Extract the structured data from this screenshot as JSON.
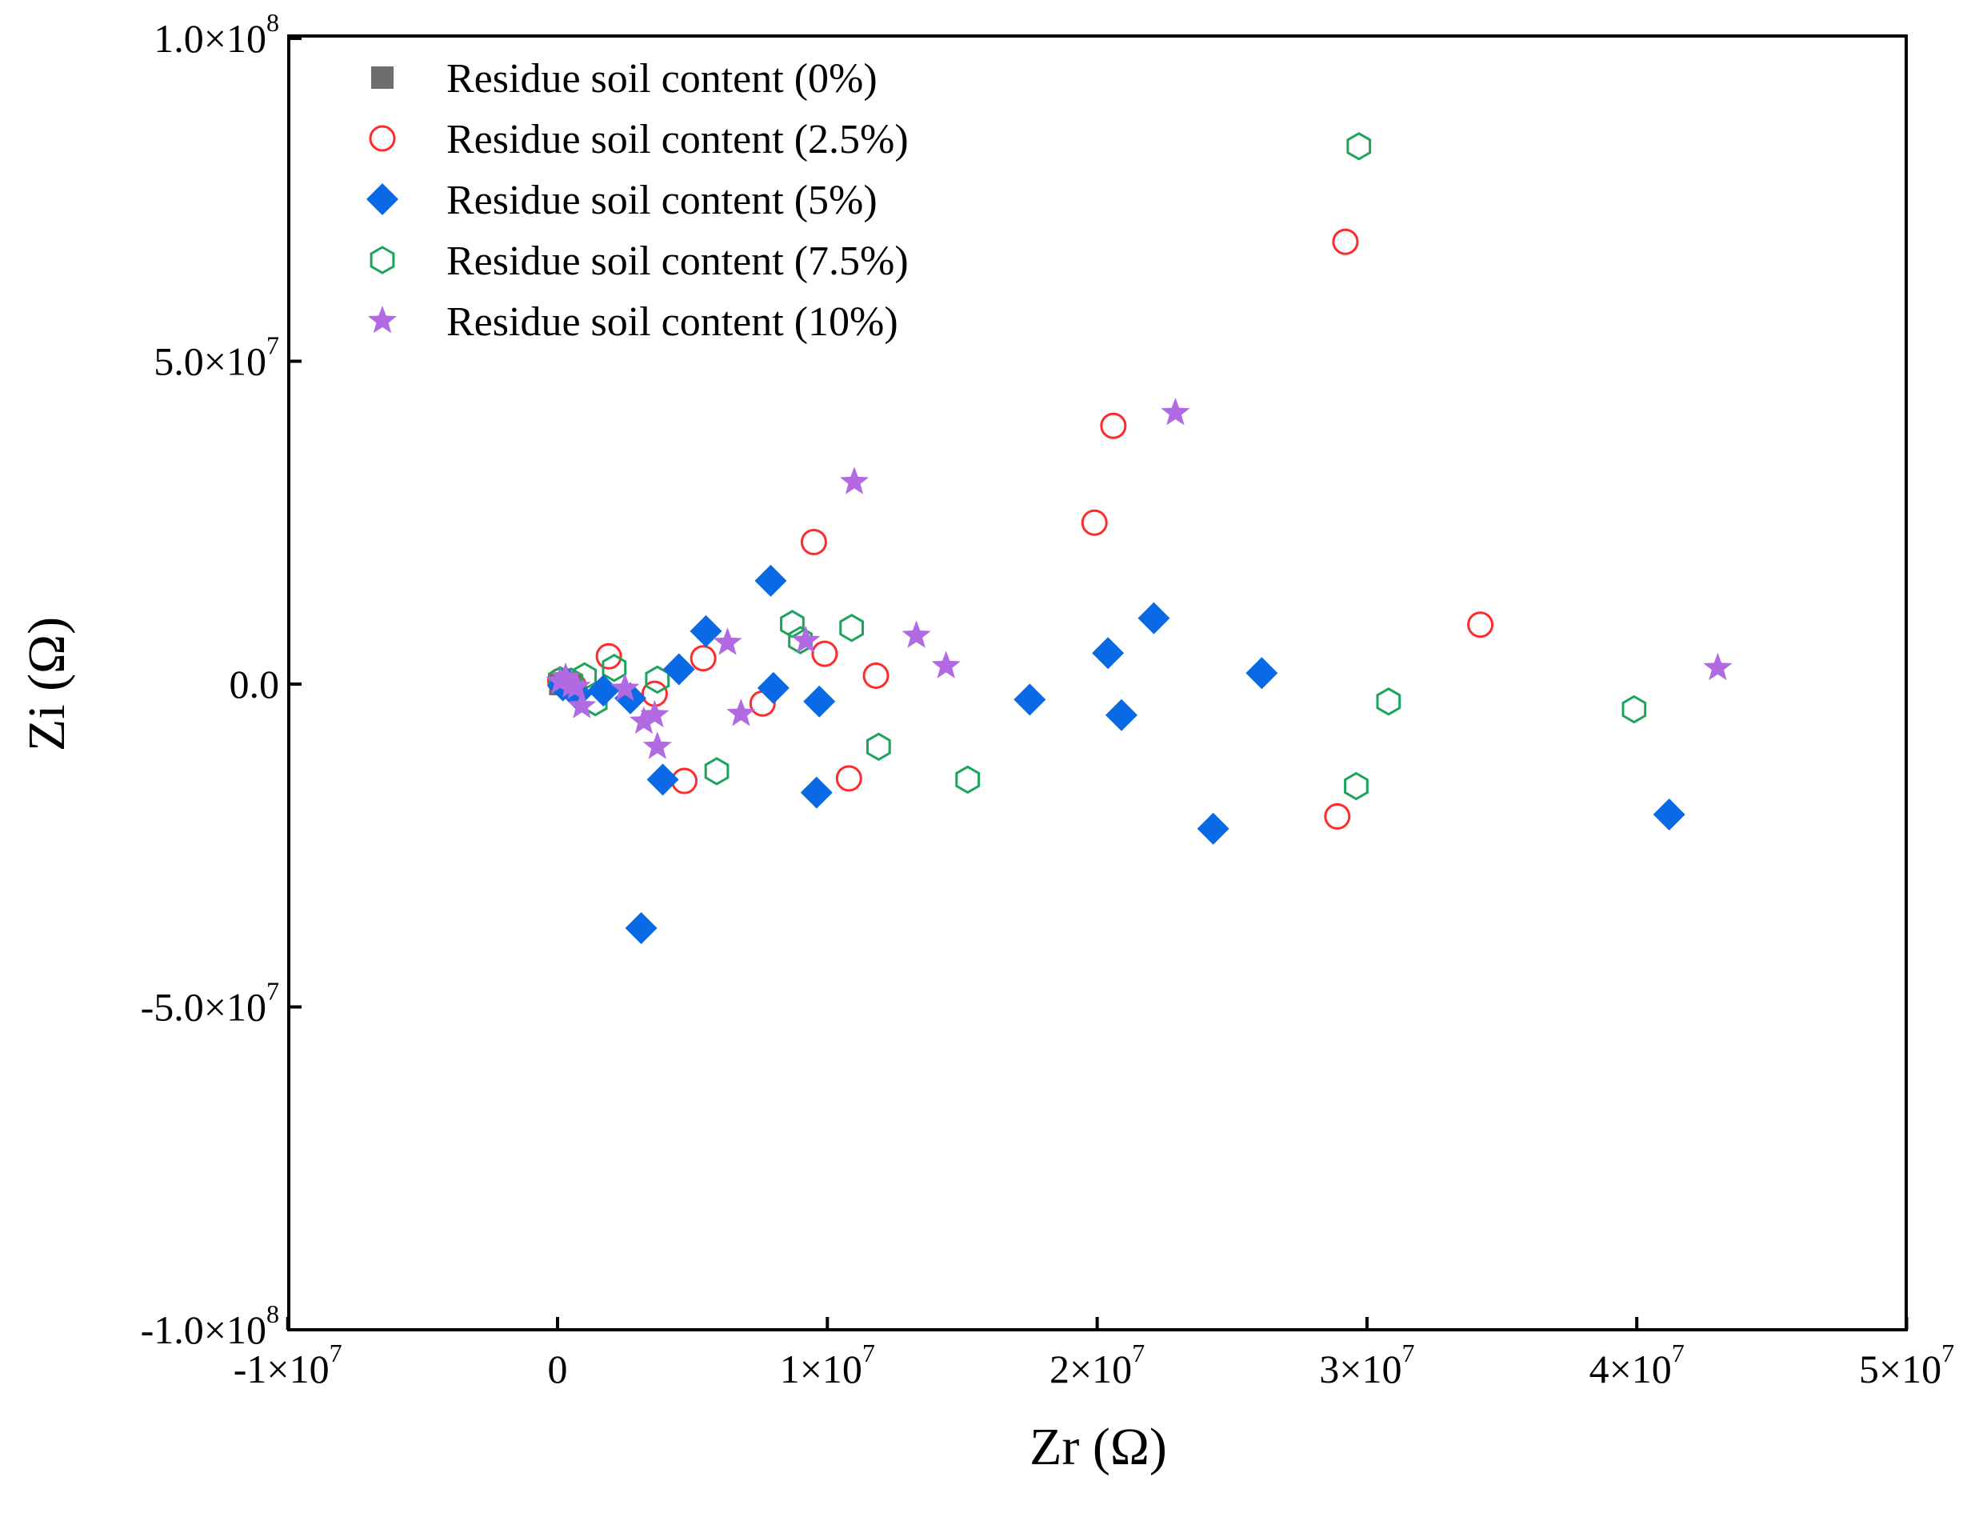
{
  "chart_data": {
    "type": "scatter",
    "title": "",
    "xlabel": "Zr (Ω)",
    "ylabel": "Zi (Ω)",
    "xlim": [
      -10000000,
      50000000
    ],
    "ylim": [
      -100000000,
      100000000
    ],
    "grid": false,
    "legend_position": "top-left",
    "x_ticks": [
      {
        "value": -10000000,
        "mantissa": "-1×10",
        "exp": "7"
      },
      {
        "value": 0,
        "mantissa": "0",
        "exp": ""
      },
      {
        "value": 10000000,
        "mantissa": "1×10",
        "exp": "7"
      },
      {
        "value": 20000000,
        "mantissa": "2×10",
        "exp": "7"
      },
      {
        "value": 30000000,
        "mantissa": "3×10",
        "exp": "7"
      },
      {
        "value": 40000000,
        "mantissa": "4×10",
        "exp": "7"
      },
      {
        "value": 50000000,
        "mantissa": "5×10",
        "exp": "7"
      }
    ],
    "y_ticks": [
      {
        "value": 100000000,
        "mantissa": "1.0×10",
        "exp": "8"
      },
      {
        "value": 50000000,
        "mantissa": "5.0×10",
        "exp": "7"
      },
      {
        "value": 0,
        "mantissa": "0.0",
        "exp": ""
      },
      {
        "value": -50000000,
        "mantissa": "-5.0×10",
        "exp": "7"
      },
      {
        "value": -100000000,
        "mantissa": "-1.0×10",
        "exp": "8"
      }
    ],
    "series": [
      {
        "name": "Residue soil content (0%)",
        "marker": "square",
        "color": "#6e6e6e",
        "filled": true,
        "x": [
          100000,
          300000,
          500000
        ],
        "y": [
          0,
          100000,
          -100000
        ]
      },
      {
        "name": "Residue soil content (2.5%)",
        "marker": "circle",
        "color": "#ff2a2a",
        "filled": false,
        "x": [
          100000,
          300000,
          600000,
          1900000,
          3600000,
          4700000,
          5400000,
          7600000,
          9500000,
          9900000,
          10800000,
          11800000,
          19900000,
          20600000,
          28900000,
          29200000,
          34200000
        ],
        "y": [
          500000,
          200000,
          -300000,
          4300000,
          -1500000,
          -15000000,
          4000000,
          -3000000,
          22000000,
          4700000,
          -14600000,
          1300000,
          25000000,
          40000000,
          -20500000,
          68500000,
          9200000
        ]
      },
      {
        "name": "Residue soil content (5%)",
        "marker": "diamond",
        "color": "#0a6ae6",
        "filled": true,
        "x": [
          200000,
          400000,
          700000,
          1700000,
          2700000,
          3100000,
          3900000,
          4500000,
          5500000,
          7900000,
          8000000,
          9600000,
          9700000,
          17500000,
          20400000,
          20900000,
          22100000,
          24300000,
          26100000,
          41200000
        ],
        "y": [
          -200000,
          0,
          -1500000,
          -1000000,
          -2200000,
          -37800000,
          -14800000,
          2300000,
          8200000,
          16000000,
          -600000,
          -16800000,
          -2700000,
          -2400000,
          4800000,
          -4800000,
          10200000,
          -22400000,
          1700000,
          -20200000
        ],
        "y_note": "approximate"
      },
      {
        "name": "Residue soil content (7.5%)",
        "marker": "hexagon",
        "color": "#1ca45c",
        "filled": false,
        "x": [
          100000,
          500000,
          1000000,
          1400000,
          2100000,
          3700000,
          5900000,
          8700000,
          9000000,
          10900000,
          11900000,
          15200000,
          29600000,
          29700000,
          30800000,
          39900000
        ],
        "y": [
          600000,
          400000,
          1200000,
          -2800000,
          2500000,
          700000,
          -13500000,
          9300000,
          6800000,
          8700000,
          -9700000,
          -14800000,
          -15800000,
          83300000,
          -2700000,
          -3900000
        ]
      },
      {
        "name": "Residue soil content (10%)",
        "marker": "star",
        "color": "#b26ae2",
        "filled": true,
        "x": [
          100000,
          300000,
          500000,
          700000,
          900000,
          2500000,
          3200000,
          3600000,
          3700000,
          6300000,
          6800000,
          9200000,
          11000000,
          13300000,
          14400000,
          22900000,
          43000000
        ],
        "y": [
          400000,
          1000000,
          -200000,
          -400000,
          -3400000,
          -700000,
          -5800000,
          -4800000,
          -9700000,
          6400000,
          -4600000,
          6700000,
          31300000,
          7500000,
          2800000,
          42000000,
          2500000
        ]
      }
    ]
  }
}
